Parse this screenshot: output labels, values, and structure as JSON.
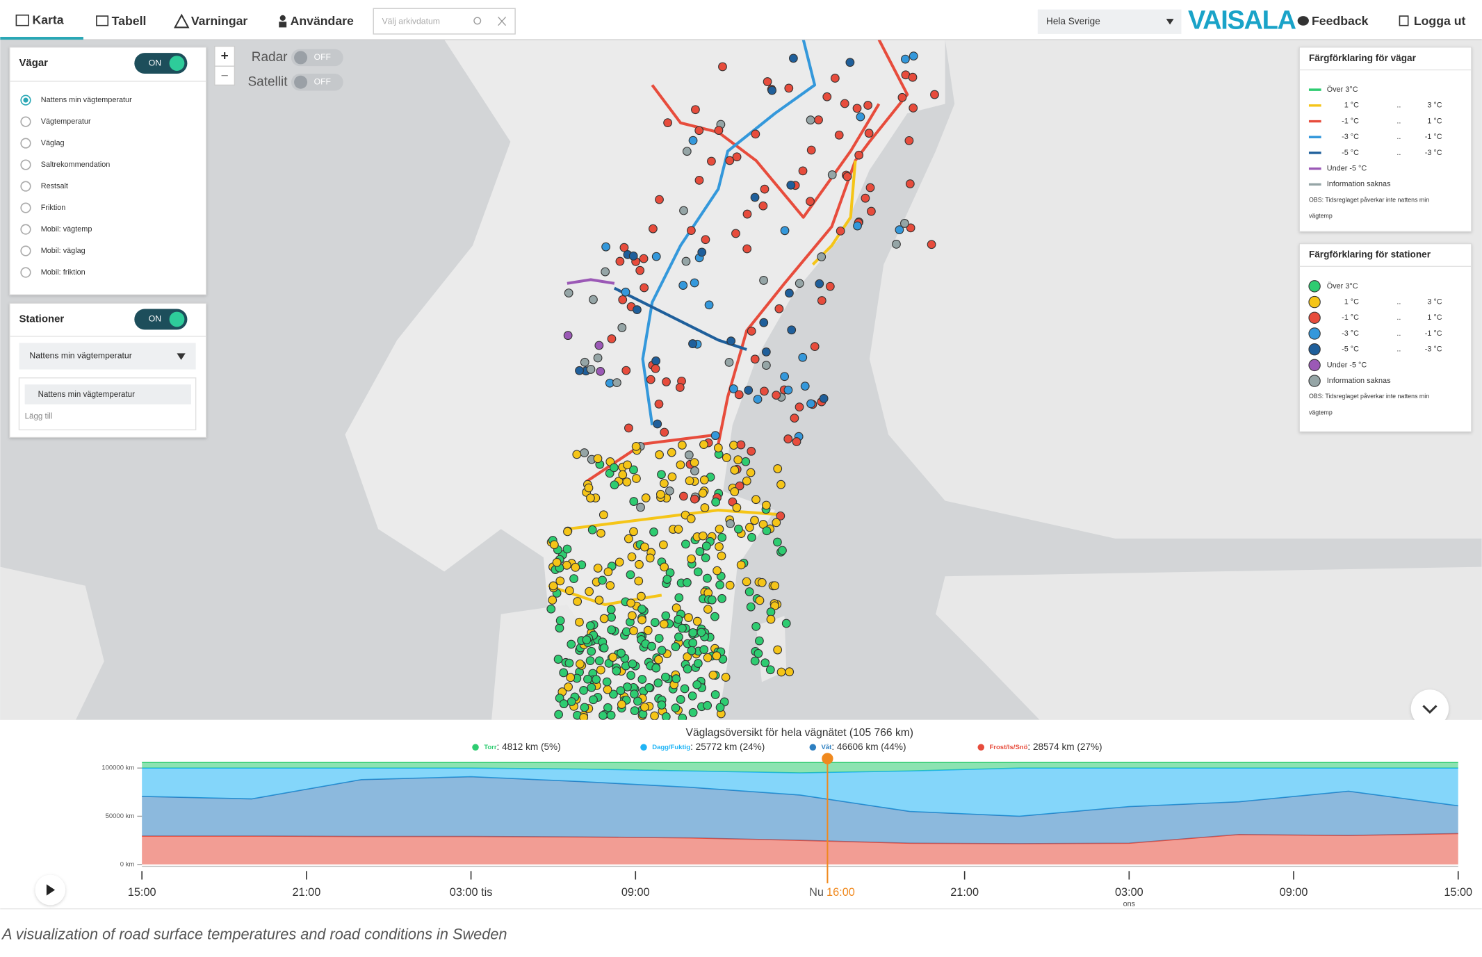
{
  "nav": {
    "tabs": [
      "Karta",
      "Tabell",
      "Varningar",
      "Användare"
    ],
    "search_placeholder": "Välj arkivdatum",
    "region": "Hela Sverige",
    "logo": "VAISALA",
    "feedback": "Feedback",
    "logout": "Logga ut"
  },
  "roads_panel": {
    "title": "Vägar",
    "toggle": "ON",
    "options": [
      "Nattens min vägtemperatur",
      "Vägtemperatur",
      "Väglag",
      "Saltrekommendation",
      "Restsalt",
      "Friktion",
      "Mobil: vägtemp",
      "Mobil: väglag",
      "Mobil: friktion"
    ]
  },
  "stations_panel": {
    "title": "Stationer",
    "toggle": "ON",
    "select": "Nattens min vägtemperatur",
    "items": [
      "Nattens min vägtemperatur"
    ],
    "add": "Lägg till"
  },
  "map_controls": {
    "zoom_in": "+",
    "zoom_out": "−",
    "layers": [
      {
        "name": "Radar",
        "state": "OFF"
      },
      {
        "name": "Satellit",
        "state": "OFF"
      }
    ]
  },
  "road_legend": {
    "title": "Färgförklaring för vägar",
    "rows": [
      {
        "color": "#2ecc71",
        "label": "Över 3°C"
      },
      {
        "color": "#f5c518",
        "from": "1 °C",
        "sep": "..",
        "to": "3 °C"
      },
      {
        "color": "#e74c3c",
        "from": "-1 °C",
        "sep": "..",
        "to": "1 °C"
      },
      {
        "color": "#3498db",
        "from": "-3 °C",
        "sep": "..",
        "to": "-1 °C"
      },
      {
        "color": "#1f5f9b",
        "from": "-5 °C",
        "sep": "..",
        "to": "-3 °C"
      },
      {
        "color": "#9b59b6",
        "label": "Under -5 °C"
      },
      {
        "color": "#95a5a6",
        "label": "Information saknas"
      }
    ],
    "note": [
      "OBS: Tidsreglaget påverkar inte nattens min",
      "vägtemp"
    ]
  },
  "station_legend": {
    "title": "Färgförklaring för stationer",
    "rows": [
      {
        "color": "#2ecc71",
        "label": "Över 3°C"
      },
      {
        "color": "#f5c518",
        "from": "1 °C",
        "sep": "..",
        "to": "3 °C"
      },
      {
        "color": "#e74c3c",
        "from": "-1 °C",
        "sep": "..",
        "to": "1 °C"
      },
      {
        "color": "#3498db",
        "from": "-3 °C",
        "sep": "..",
        "to": "-1 °C"
      },
      {
        "color": "#1f5f9b",
        "from": "-5 °C",
        "sep": "..",
        "to": "-3 °C"
      },
      {
        "color": "#9b59b6",
        "label": "Under -5 °C"
      },
      {
        "color": "#95a5a6",
        "label": "Information saknas"
      }
    ],
    "note": [
      "OBS: Tidsreglaget påverkar inte nattens min",
      "vägtemp"
    ]
  },
  "chart_data": {
    "type": "stacked-area",
    "title": "Väglagsöversikt för hela vägnätet (105 766 km)",
    "x": [
      0,
      4,
      8,
      12,
      16,
      20,
      24,
      28,
      32,
      36,
      40,
      44,
      48
    ],
    "xlim": [
      0,
      48
    ],
    "xticks": [
      {
        "value": 0,
        "label": "15:00"
      },
      {
        "value": 6,
        "label": "21:00"
      },
      {
        "value": 12,
        "label": "03:00 tis"
      },
      {
        "value": 18,
        "label": "09:00"
      },
      {
        "value": 30,
        "label": "21:00"
      },
      {
        "value": 36,
        "label": "03:00",
        "sublabel": "ons"
      },
      {
        "value": 42,
        "label": "09:00"
      },
      {
        "value": 48,
        "label": "15:00"
      }
    ],
    "now": {
      "value": 25,
      "prefix": "Nu",
      "label": "16:00"
    },
    "ylim": [
      0,
      100000
    ],
    "yticks": [
      {
        "value": 0,
        "label": "0 km"
      },
      {
        "value": 50000,
        "label": "50000 km"
      },
      {
        "value": 100000,
        "label": "100000 km"
      }
    ],
    "series": [
      {
        "name": "Torr",
        "value_label": ": 4812 km (5%)",
        "color": "#2ecc71",
        "values": [
          5800,
          5800,
          5800,
          5800,
          6800,
          8800,
          10800,
          8800,
          5800,
          5800,
          5800,
          5800,
          5800
        ]
      },
      {
        "name": "Dagg/Fuktig",
        "value_label": ": 25772 km (24%)",
        "color": "#1fb4f5",
        "values": [
          29400,
          32000,
          12000,
          9000,
          13000,
          17000,
          23000,
          42000,
          50000,
          40000,
          35000,
          24000,
          39200
        ]
      },
      {
        "name": "Våt",
        "value_label": ": 46606 km (44%)",
        "color": "#2d7fc1",
        "values": [
          41200,
          38600,
          59000,
          62000,
          57500,
          52500,
          47000,
          33000,
          28500,
          38000,
          34000,
          46000,
          28800
        ]
      },
      {
        "name": "Frost/Is/Snö",
        "value_label": ": 28574 km (27%)",
        "color": "#e74c3c",
        "values": [
          29400,
          29400,
          29000,
          29000,
          28500,
          27500,
          25000,
          22000,
          21500,
          22000,
          31000,
          30000,
          32000
        ]
      }
    ]
  },
  "caption": "A visualization of road surface temperatures and road conditions in Sweden"
}
